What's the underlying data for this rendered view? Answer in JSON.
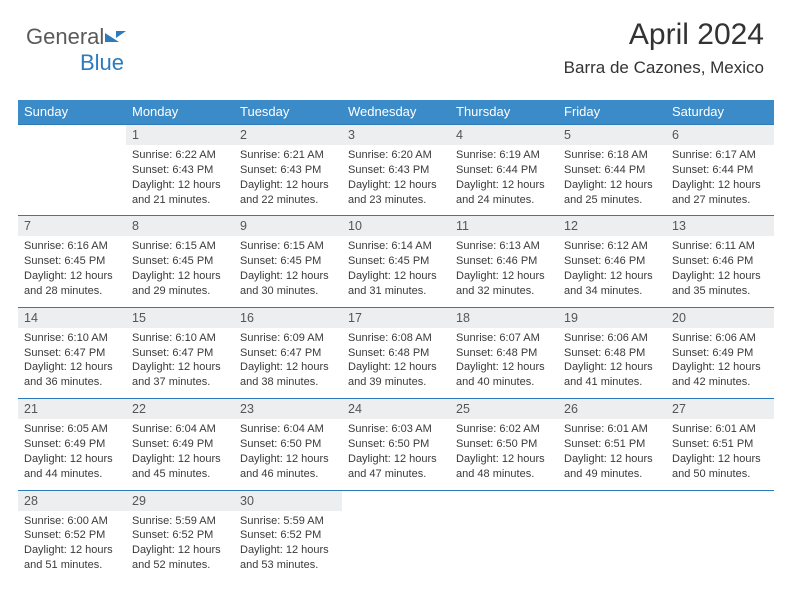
{
  "logo": {
    "text1": "General",
    "text2": "Blue"
  },
  "title": "April 2024",
  "subtitle": "Barra de Cazones, Mexico",
  "colors": {
    "header_bg": "#3b8bc8",
    "daynum_bg": "#eceeef",
    "border": "#2b7bbd",
    "text": "#3a3a3a",
    "background": "#ffffff"
  },
  "typography": {
    "title_fontsize": 30,
    "subtitle_fontsize": 17,
    "header_fontsize": 13,
    "daynum_fontsize": 12.5,
    "cell_fontsize": 11,
    "font_family": "Arial"
  },
  "day_names": [
    "Sunday",
    "Monday",
    "Tuesday",
    "Wednesday",
    "Thursday",
    "Friday",
    "Saturday"
  ],
  "weeks": [
    [
      null,
      {
        "n": "1",
        "sr": "Sunrise: 6:22 AM",
        "ss": "Sunset: 6:43 PM",
        "d1": "Daylight: 12 hours",
        "d2": "and 21 minutes."
      },
      {
        "n": "2",
        "sr": "Sunrise: 6:21 AM",
        "ss": "Sunset: 6:43 PM",
        "d1": "Daylight: 12 hours",
        "d2": "and 22 minutes."
      },
      {
        "n": "3",
        "sr": "Sunrise: 6:20 AM",
        "ss": "Sunset: 6:43 PM",
        "d1": "Daylight: 12 hours",
        "d2": "and 23 minutes."
      },
      {
        "n": "4",
        "sr": "Sunrise: 6:19 AM",
        "ss": "Sunset: 6:44 PM",
        "d1": "Daylight: 12 hours",
        "d2": "and 24 minutes."
      },
      {
        "n": "5",
        "sr": "Sunrise: 6:18 AM",
        "ss": "Sunset: 6:44 PM",
        "d1": "Daylight: 12 hours",
        "d2": "and 25 minutes."
      },
      {
        "n": "6",
        "sr": "Sunrise: 6:17 AM",
        "ss": "Sunset: 6:44 PM",
        "d1": "Daylight: 12 hours",
        "d2": "and 27 minutes."
      }
    ],
    [
      {
        "n": "7",
        "sr": "Sunrise: 6:16 AM",
        "ss": "Sunset: 6:45 PM",
        "d1": "Daylight: 12 hours",
        "d2": "and 28 minutes."
      },
      {
        "n": "8",
        "sr": "Sunrise: 6:15 AM",
        "ss": "Sunset: 6:45 PM",
        "d1": "Daylight: 12 hours",
        "d2": "and 29 minutes."
      },
      {
        "n": "9",
        "sr": "Sunrise: 6:15 AM",
        "ss": "Sunset: 6:45 PM",
        "d1": "Daylight: 12 hours",
        "d2": "and 30 minutes."
      },
      {
        "n": "10",
        "sr": "Sunrise: 6:14 AM",
        "ss": "Sunset: 6:45 PM",
        "d1": "Daylight: 12 hours",
        "d2": "and 31 minutes."
      },
      {
        "n": "11",
        "sr": "Sunrise: 6:13 AM",
        "ss": "Sunset: 6:46 PM",
        "d1": "Daylight: 12 hours",
        "d2": "and 32 minutes."
      },
      {
        "n": "12",
        "sr": "Sunrise: 6:12 AM",
        "ss": "Sunset: 6:46 PM",
        "d1": "Daylight: 12 hours",
        "d2": "and 34 minutes."
      },
      {
        "n": "13",
        "sr": "Sunrise: 6:11 AM",
        "ss": "Sunset: 6:46 PM",
        "d1": "Daylight: 12 hours",
        "d2": "and 35 minutes."
      }
    ],
    [
      {
        "n": "14",
        "sr": "Sunrise: 6:10 AM",
        "ss": "Sunset: 6:47 PM",
        "d1": "Daylight: 12 hours",
        "d2": "and 36 minutes."
      },
      {
        "n": "15",
        "sr": "Sunrise: 6:10 AM",
        "ss": "Sunset: 6:47 PM",
        "d1": "Daylight: 12 hours",
        "d2": "and 37 minutes."
      },
      {
        "n": "16",
        "sr": "Sunrise: 6:09 AM",
        "ss": "Sunset: 6:47 PM",
        "d1": "Daylight: 12 hours",
        "d2": "and 38 minutes."
      },
      {
        "n": "17",
        "sr": "Sunrise: 6:08 AM",
        "ss": "Sunset: 6:48 PM",
        "d1": "Daylight: 12 hours",
        "d2": "and 39 minutes."
      },
      {
        "n": "18",
        "sr": "Sunrise: 6:07 AM",
        "ss": "Sunset: 6:48 PM",
        "d1": "Daylight: 12 hours",
        "d2": "and 40 minutes."
      },
      {
        "n": "19",
        "sr": "Sunrise: 6:06 AM",
        "ss": "Sunset: 6:48 PM",
        "d1": "Daylight: 12 hours",
        "d2": "and 41 minutes."
      },
      {
        "n": "20",
        "sr": "Sunrise: 6:06 AM",
        "ss": "Sunset: 6:49 PM",
        "d1": "Daylight: 12 hours",
        "d2": "and 42 minutes."
      }
    ],
    [
      {
        "n": "21",
        "sr": "Sunrise: 6:05 AM",
        "ss": "Sunset: 6:49 PM",
        "d1": "Daylight: 12 hours",
        "d2": "and 44 minutes."
      },
      {
        "n": "22",
        "sr": "Sunrise: 6:04 AM",
        "ss": "Sunset: 6:49 PM",
        "d1": "Daylight: 12 hours",
        "d2": "and 45 minutes."
      },
      {
        "n": "23",
        "sr": "Sunrise: 6:04 AM",
        "ss": "Sunset: 6:50 PM",
        "d1": "Daylight: 12 hours",
        "d2": "and 46 minutes."
      },
      {
        "n": "24",
        "sr": "Sunrise: 6:03 AM",
        "ss": "Sunset: 6:50 PM",
        "d1": "Daylight: 12 hours",
        "d2": "and 47 minutes."
      },
      {
        "n": "25",
        "sr": "Sunrise: 6:02 AM",
        "ss": "Sunset: 6:50 PM",
        "d1": "Daylight: 12 hours",
        "d2": "and 48 minutes."
      },
      {
        "n": "26",
        "sr": "Sunrise: 6:01 AM",
        "ss": "Sunset: 6:51 PM",
        "d1": "Daylight: 12 hours",
        "d2": "and 49 minutes."
      },
      {
        "n": "27",
        "sr": "Sunrise: 6:01 AM",
        "ss": "Sunset: 6:51 PM",
        "d1": "Daylight: 12 hours",
        "d2": "and 50 minutes."
      }
    ],
    [
      {
        "n": "28",
        "sr": "Sunrise: 6:00 AM",
        "ss": "Sunset: 6:52 PM",
        "d1": "Daylight: 12 hours",
        "d2": "and 51 minutes."
      },
      {
        "n": "29",
        "sr": "Sunrise: 5:59 AM",
        "ss": "Sunset: 6:52 PM",
        "d1": "Daylight: 12 hours",
        "d2": "and 52 minutes."
      },
      {
        "n": "30",
        "sr": "Sunrise: 5:59 AM",
        "ss": "Sunset: 6:52 PM",
        "d1": "Daylight: 12 hours",
        "d2": "and 53 minutes."
      },
      null,
      null,
      null,
      null
    ]
  ]
}
